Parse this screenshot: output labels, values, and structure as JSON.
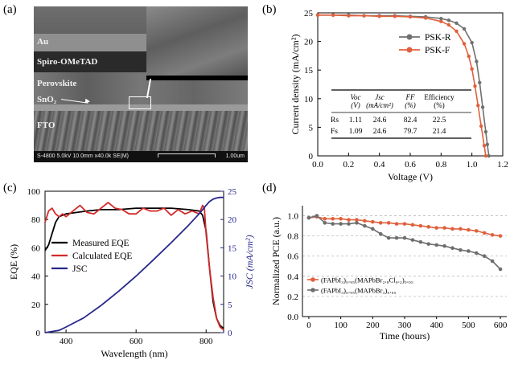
{
  "panels": {
    "a": {
      "letter": "(a)",
      "layers": [
        "Au",
        "Spiro-OMeTAD",
        "Perovskite",
        "SnO₂",
        "FTO"
      ],
      "sem_bar_left": "S-4800 5.0kV 10.0mm x40.0k SE(M)",
      "sem_bar_right": "1.00um"
    },
    "b": {
      "letter": "(b)"
    },
    "c": {
      "letter": "(c)"
    },
    "d": {
      "letter": "(d)"
    }
  },
  "chart_data": [
    {
      "id": "b",
      "type": "line",
      "xlabel": "Voltage (V)",
      "ylabel": "Current density (mA/cm²)",
      "xlim": [
        0.0,
        1.2
      ],
      "ylim": [
        0,
        25
      ],
      "xticks": [
        "0.0",
        "0.2",
        "0.4",
        "0.6",
        "0.8",
        "1.0",
        "1.2"
      ],
      "yticks": [
        "0",
        "5",
        "10",
        "15",
        "20",
        "25"
      ],
      "legend": "right",
      "series": [
        {
          "name": "PSK-R",
          "color": "#707070",
          "x": [
            0.0,
            0.1,
            0.2,
            0.3,
            0.4,
            0.5,
            0.6,
            0.7,
            0.8,
            0.85,
            0.9,
            0.95,
            1.0,
            1.03,
            1.05,
            1.07,
            1.09,
            1.1,
            1.11
          ],
          "y": [
            24.6,
            24.6,
            24.6,
            24.5,
            24.5,
            24.5,
            24.4,
            24.3,
            24.0,
            23.7,
            23.2,
            22.2,
            19.8,
            16.5,
            12.8,
            8.5,
            4.2,
            2.0,
            0
          ]
        },
        {
          "name": "PSK-F",
          "color": "#e0603c",
          "x": [
            0.0,
            0.1,
            0.2,
            0.3,
            0.4,
            0.5,
            0.6,
            0.7,
            0.8,
            0.85,
            0.9,
            0.95,
            0.98,
            1.0,
            1.02,
            1.04,
            1.06,
            1.08,
            1.09
          ],
          "y": [
            24.6,
            24.6,
            24.5,
            24.5,
            24.4,
            24.4,
            24.3,
            24.1,
            23.5,
            22.9,
            21.8,
            19.6,
            17.4,
            15.2,
            12.2,
            8.8,
            5.2,
            1.8,
            0
          ]
        }
      ],
      "table": {
        "headers": [
          "",
          "Voc\n(V)",
          "Jsc\n(mA/cm²)",
          "FF\n(%)",
          "Efficiency\n(%)"
        ],
        "rows": [
          [
            "Rs",
            "1.11",
            "24.6",
            "82.4",
            "22.5"
          ],
          [
            "Fs",
            "1.09",
            "24.6",
            "79.7",
            "21.4"
          ]
        ]
      }
    },
    {
      "id": "c",
      "type": "line",
      "xlabel": "Wavelength (nm)",
      "ylabel": "EQE (%)",
      "y2label": "JSC (mA/cm²)",
      "xlim": [
        340,
        850
      ],
      "ylim": [
        0,
        100
      ],
      "y2lim": [
        0,
        25
      ],
      "xticks": [
        "400",
        "600",
        "800"
      ],
      "yticks": [
        "0",
        "20",
        "40",
        "60",
        "80",
        "100"
      ],
      "y2ticks": [
        "0",
        "5",
        "10",
        "15",
        "20",
        "25"
      ],
      "legend": "left",
      "series": [
        {
          "name": "Measured EQE",
          "color": "#000000",
          "axis": "left",
          "x": [
            340,
            350,
            360,
            370,
            380,
            400,
            430,
            460,
            500,
            550,
            600,
            650,
            700,
            750,
            780,
            790,
            800,
            810,
            820,
            830,
            840,
            850
          ],
          "y": [
            58,
            62,
            70,
            78,
            82,
            84,
            85,
            86,
            87,
            87,
            88,
            88,
            88,
            87,
            86,
            83,
            72,
            45,
            22,
            10,
            5,
            3
          ]
        },
        {
          "name": "Calculated EQE",
          "color": "#d42a2a",
          "axis": "left",
          "x": [
            340,
            350,
            360,
            370,
            380,
            390,
            400,
            420,
            440,
            460,
            480,
            500,
            520,
            540,
            560,
            580,
            600,
            620,
            640,
            660,
            680,
            700,
            720,
            740,
            760,
            780,
            790,
            795,
            800,
            810,
            820,
            830,
            840,
            850
          ],
          "y": [
            78,
            86,
            88,
            84,
            82,
            84,
            82,
            86,
            90,
            85,
            84,
            88,
            92,
            88,
            87,
            84,
            84,
            88,
            86,
            86,
            88,
            83,
            87,
            84,
            86,
            84,
            90,
            88,
            70,
            45,
            25,
            10,
            4,
            2
          ]
        },
        {
          "name": "JSC",
          "color": "#27278c",
          "axis": "right",
          "x": [
            340,
            380,
            400,
            450,
            500,
            550,
            600,
            650,
            700,
            750,
            780,
            800,
            810,
            820,
            830,
            840,
            850
          ],
          "y": [
            0,
            0.4,
            1.0,
            2.6,
            4.8,
            7.3,
            10.0,
            12.9,
            15.9,
            19.0,
            21.0,
            22.5,
            23.2,
            23.6,
            23.8,
            23.9,
            23.9
          ]
        }
      ]
    },
    {
      "id": "d",
      "type": "line",
      "xlabel": "Time (hours)",
      "ylabel": "Normalized PCE (a.u.)",
      "xlim": [
        -20,
        620
      ],
      "ylim": [
        0.0,
        1.1
      ],
      "xticks": [
        "0",
        "100",
        "200",
        "300",
        "400",
        "500",
        "600"
      ],
      "yticks": [
        "0.0",
        "0.2",
        "0.4",
        "0.6",
        "0.8",
        "1.0"
      ],
      "grid": "horizontal dashed",
      "legend": "left",
      "series": [
        {
          "name": "(FAPbI₃)₀.₉₅(MAPbBr₂.₈Cl₀.₂)₀.₀₅",
          "color": "#e0603c",
          "x": [
            0,
            25,
            50,
            75,
            100,
            125,
            150,
            175,
            200,
            225,
            250,
            275,
            300,
            325,
            350,
            375,
            400,
            425,
            450,
            475,
            500,
            525,
            550,
            575,
            600
          ],
          "y": [
            0.98,
            0.99,
            0.97,
            0.97,
            0.97,
            0.96,
            0.96,
            0.95,
            0.94,
            0.93,
            0.93,
            0.92,
            0.92,
            0.91,
            0.9,
            0.89,
            0.88,
            0.88,
            0.87,
            0.87,
            0.86,
            0.85,
            0.83,
            0.81,
            0.8
          ]
        },
        {
          "name": "(FAPbI₃)₀.₉₅(MAPbBr₃)₀.₀₅",
          "color": "#6e6e6e",
          "x": [
            0,
            25,
            50,
            75,
            100,
            125,
            150,
            175,
            200,
            225,
            250,
            275,
            300,
            325,
            350,
            375,
            400,
            425,
            450,
            475,
            500,
            525,
            550,
            575,
            600
          ],
          "y": [
            0.98,
            1.0,
            0.93,
            0.92,
            0.92,
            0.92,
            0.93,
            0.9,
            0.87,
            0.82,
            0.78,
            0.78,
            0.78,
            0.76,
            0.74,
            0.72,
            0.71,
            0.7,
            0.68,
            0.66,
            0.65,
            0.63,
            0.6,
            0.55,
            0.47
          ]
        }
      ]
    }
  ]
}
